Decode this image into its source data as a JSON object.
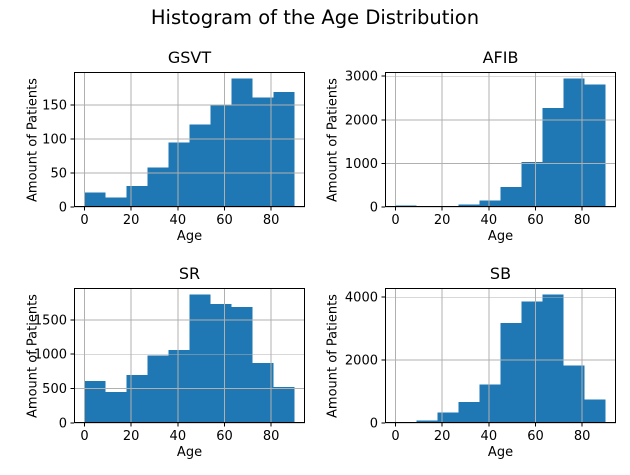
{
  "figure": {
    "title": "Histogram of the Age Distribution"
  },
  "chart_data": [
    {
      "type": "bar",
      "title": "GSVT",
      "xlabel": "Age",
      "ylabel": "Amount of Patients",
      "bin_edges": [
        0,
        9,
        18,
        27,
        36,
        45,
        54,
        63,
        72,
        81,
        90
      ],
      "values": [
        21,
        14,
        31,
        58,
        95,
        121,
        150,
        189,
        161,
        169
      ],
      "xticks": [
        0,
        20,
        40,
        60,
        80
      ],
      "yticks": [
        0,
        50,
        100,
        150
      ],
      "xlim": [
        -4.5,
        94.5
      ],
      "ylim": [
        0,
        198.5
      ],
      "grid": true,
      "bar_color": "#1f77b4",
      "grid_color": "#b0b0b0"
    },
    {
      "type": "bar",
      "title": "AFIB",
      "xlabel": "Age",
      "ylabel": "Amount of Patients",
      "bin_edges": [
        0,
        9,
        18,
        27,
        36,
        45,
        54,
        63,
        72,
        81,
        90
      ],
      "values": [
        35,
        8,
        18,
        55,
        150,
        460,
        1030,
        2270,
        2950,
        2810
      ],
      "xticks": [
        0,
        20,
        40,
        60,
        80
      ],
      "yticks": [
        0,
        1000,
        2000,
        3000
      ],
      "xlim": [
        -4.5,
        94.5
      ],
      "ylim": [
        0,
        3097
      ],
      "grid": true,
      "bar_color": "#1f77b4",
      "grid_color": "#b0b0b0"
    },
    {
      "type": "bar",
      "title": "SR",
      "xlabel": "Age",
      "ylabel": "Amount of Patients",
      "bin_edges": [
        0,
        9,
        18,
        27,
        36,
        45,
        54,
        63,
        72,
        81,
        90
      ],
      "values": [
        610,
        450,
        700,
        980,
        1060,
        1870,
        1730,
        1690,
        870,
        520
      ],
      "xticks": [
        0,
        20,
        40,
        60,
        80
      ],
      "yticks": [
        0,
        500,
        1000,
        1500
      ],
      "xlim": [
        -4.5,
        94.5
      ],
      "ylim": [
        0,
        1963
      ],
      "grid": true,
      "bar_color": "#1f77b4",
      "grid_color": "#b0b0b0"
    },
    {
      "type": "bar",
      "title": "SB",
      "xlabel": "Age",
      "ylabel": "Amount of Patients",
      "bin_edges": [
        0,
        9,
        18,
        27,
        36,
        45,
        54,
        63,
        72,
        81,
        90
      ],
      "values": [
        30,
        85,
        330,
        670,
        1230,
        3180,
        3860,
        4090,
        1830,
        740
      ],
      "xticks": [
        0,
        20,
        40,
        60,
        80
      ],
      "yticks": [
        0,
        2000,
        4000
      ],
      "xlim": [
        -4.5,
        94.5
      ],
      "ylim": [
        0,
        4294
      ],
      "grid": true,
      "bar_color": "#1f77b4",
      "grid_color": "#b0b0b0"
    }
  ]
}
